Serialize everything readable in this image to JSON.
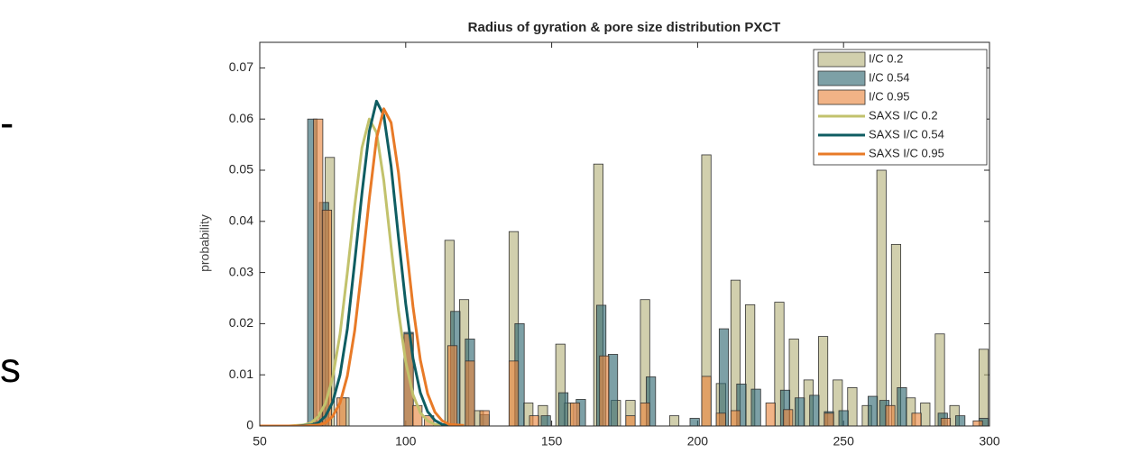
{
  "side_text": [
    "-",
    "s"
  ],
  "chart_data": {
    "type": "bar_line",
    "title": "Radius of gyration & pore size distribution PXCT",
    "y_label": "probability",
    "xlim": [
      50,
      300
    ],
    "xticks": [
      50,
      100,
      150,
      200,
      250,
      300
    ],
    "ylim": [
      0,
      0.075
    ],
    "yticks": [
      0,
      0.01,
      0.02,
      0.03,
      0.04,
      0.05,
      0.06,
      0.07
    ],
    "bar_width": 3.2,
    "legend": "upper right",
    "series": [
      {
        "name": "I/C 0.2",
        "kind": "bar",
        "color": "#b5b27a",
        "x": [
          74,
          79,
          115,
          120,
          125,
          137,
          142,
          147,
          153,
          156,
          166,
          172,
          177,
          182,
          192,
          203,
          208,
          213,
          218,
          228,
          233,
          238,
          243,
          248,
          253,
          258,
          263,
          268,
          273,
          278,
          283,
          288,
          298
        ],
        "values": [
          0.0525,
          0.0055,
          0.0363,
          0.0247,
          0.003,
          0.038,
          0.0045,
          0.004,
          0.016,
          0.0045,
          0.0512,
          0.005,
          0.005,
          0.0247,
          0.002,
          0.053,
          0.0083,
          0.0285,
          0.0237,
          0.0242,
          0.017,
          0.009,
          0.0175,
          0.009,
          0.0075,
          0.004,
          0.05,
          0.0355,
          0.0055,
          0.0045,
          0.018,
          0.004,
          0.015
        ]
      },
      {
        "name": "I/C 0.54",
        "kind": "bar",
        "color": "#2d6670",
        "x": [
          68,
          72,
          101,
          117,
          122,
          127,
          139,
          148,
          154,
          160,
          167,
          171,
          184,
          199,
          209,
          215,
          220,
          230,
          235,
          240,
          245,
          250,
          260,
          264,
          270,
          284,
          290,
          298
        ],
        "values": [
          0.06,
          0.0437,
          0.0183,
          0.0224,
          0.017,
          0.0022,
          0.02,
          0.002,
          0.0065,
          0.0052,
          0.0236,
          0.014,
          0.0096,
          0.0015,
          0.019,
          0.0082,
          0.0072,
          0.007,
          0.0055,
          0.006,
          0.0028,
          0.003,
          0.0058,
          0.005,
          0.0075,
          0.0025,
          0.002,
          0.0015
        ]
      },
      {
        "name": "I/C 0.95",
        "kind": "bar",
        "color": "#e8843c",
        "x": [
          70,
          73,
          78,
          101,
          104,
          108,
          116,
          122,
          127,
          137,
          144,
          158,
          168,
          177,
          182,
          203,
          208,
          213,
          225,
          231,
          245,
          266,
          275,
          285,
          296
        ],
        "values": [
          0.06,
          0.0422,
          0.0055,
          0.018,
          0.004,
          0.002,
          0.0157,
          0.0127,
          0.003,
          0.0127,
          0.002,
          0.0045,
          0.0137,
          0.002,
          0.0045,
          0.0097,
          0.0025,
          0.003,
          0.0045,
          0.0032,
          0.0025,
          0.004,
          0.0025,
          0.0015,
          0.001
        ]
      },
      {
        "name": "SAXS I/C 0.2",
        "kind": "line",
        "color": "#c2c26c",
        "x": [
          50,
          60,
          62.5,
          65,
          67.5,
          70,
          72.5,
          75,
          77.5,
          80,
          82.5,
          85,
          87.5,
          90,
          92.5,
          95,
          97.5,
          100,
          102.5,
          105,
          107.5,
          110,
          112.5,
          115,
          120
        ],
        "values": [
          0,
          0,
          0.0001,
          0.0002,
          0.0006,
          0.0018,
          0.0044,
          0.0095,
          0.018,
          0.03,
          0.043,
          0.0544,
          0.06,
          0.0574,
          0.048,
          0.035,
          0.0226,
          0.0125,
          0.0061,
          0.0026,
          0.001,
          0.0003,
          0.0001,
          0,
          0
        ]
      },
      {
        "name": "SAXS I/C 0.54",
        "kind": "line",
        "color": "#0f5d62",
        "x": [
          50,
          60,
          62.5,
          65,
          67.5,
          70,
          72.5,
          75,
          77.5,
          80,
          82.5,
          85,
          87.5,
          90,
          92.5,
          95,
          97.5,
          100,
          102.5,
          105,
          107.5,
          110,
          112.5,
          115,
          120
        ],
        "values": [
          0,
          0,
          0,
          0.0001,
          0.0002,
          0.0006,
          0.0019,
          0.0047,
          0.01,
          0.019,
          0.032,
          0.0455,
          0.0576,
          0.0635,
          0.0607,
          0.0508,
          0.037,
          0.0239,
          0.0132,
          0.0065,
          0.0028,
          0.0011,
          0.0003,
          0.0001,
          0
        ]
      },
      {
        "name": "SAXS I/C 0.95",
        "kind": "line",
        "color": "#e87a27",
        "x": [
          50,
          60,
          62.5,
          65,
          67.5,
          70,
          72.5,
          75,
          77.5,
          80,
          82.5,
          85,
          87.5,
          90,
          92.5,
          95,
          97.5,
          100,
          102.5,
          105,
          107.5,
          110,
          112.5,
          115,
          120
        ],
        "values": [
          0,
          0,
          0,
          0,
          0.0001,
          0.0002,
          0.0006,
          0.0019,
          0.0045,
          0.0098,
          0.0186,
          0.031,
          0.0444,
          0.0562,
          0.062,
          0.0593,
          0.0496,
          0.0362,
          0.0233,
          0.0129,
          0.0063,
          0.0027,
          0.001,
          0.0003,
          0.0001
        ]
      }
    ]
  }
}
